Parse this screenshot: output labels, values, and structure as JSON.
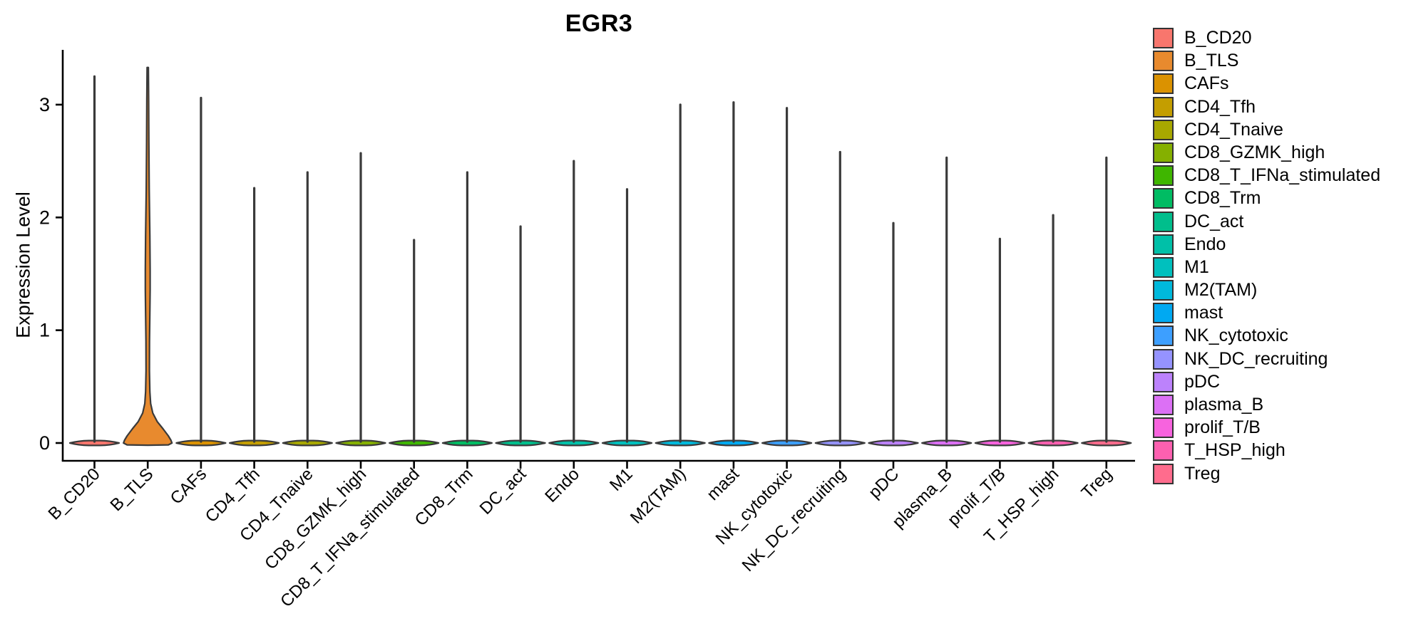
{
  "title": "EGR3",
  "y_axis": {
    "label": "Expression Level",
    "tick_labels": [
      "0",
      "1",
      "2",
      "3"
    ]
  },
  "style": {
    "background": "#FFFFFF",
    "axis_color": "#000000",
    "violin_outline_color": "#3A3A3A",
    "text_color": "#000000"
  },
  "chart_data": {
    "type": "violin",
    "title": "EGR3",
    "xlabel": "",
    "ylabel": "Expression Level",
    "ylim": [
      0,
      3.5
    ],
    "y_ticks": [
      0,
      1,
      2,
      3
    ],
    "grid": false,
    "legend_position": "right",
    "x_tick_angle": 45,
    "categories": [
      "B_CD20",
      "B_TLS",
      "CAFs",
      "CD4_Tfh",
      "CD4_Tnaive",
      "CD8_GZMK_high",
      "CD8_T_IFNa_stimulated",
      "CD8_Trm",
      "DC_act",
      "Endo",
      "M1",
      "M2(TAM)",
      "mast",
      "NK_cytotoxic",
      "NK_DC_recruiting",
      "pDC",
      "plasma_B",
      "prolif_T/B",
      "T_HSP_high",
      "Treg"
    ],
    "series": [
      {
        "name": "B_CD20",
        "color": "#F8766D",
        "max_expression": 3.25,
        "body": "spike"
      },
      {
        "name": "B_TLS",
        "color": "#E88A2E",
        "max_expression": 3.33,
        "body": "bell",
        "density_profile": [
          [
            0.0,
            1.0
          ],
          [
            0.025,
            0.955
          ],
          [
            0.063,
            0.85
          ],
          [
            0.126,
            0.63
          ],
          [
            0.19,
            0.39
          ],
          [
            0.265,
            0.21
          ],
          [
            0.35,
            0.12
          ],
          [
            0.455,
            0.087
          ],
          [
            0.64,
            0.072
          ],
          [
            0.9,
            0.075
          ],
          [
            1.15,
            0.087
          ],
          [
            1.36,
            0.101
          ],
          [
            1.53,
            0.099
          ],
          [
            1.84,
            0.087
          ],
          [
            2.25,
            0.063
          ],
          [
            2.67,
            0.048
          ],
          [
            3.04,
            0.039
          ],
          [
            3.33,
            0.027
          ]
        ]
      },
      {
        "name": "CAFs",
        "color": "#DB9200",
        "max_expression": 3.06,
        "body": "spike"
      },
      {
        "name": "CD4_Tfh",
        "color": "#C49E00",
        "max_expression": 2.26,
        "body": "spike"
      },
      {
        "name": "CD4_Tnaive",
        "color": "#A8A800",
        "max_expression": 2.4,
        "body": "spike"
      },
      {
        "name": "CD8_GZMK_high",
        "color": "#85B000",
        "max_expression": 2.57,
        "body": "spike"
      },
      {
        "name": "CD8_T_IFNa_stimulated",
        "color": "#3FB600",
        "max_expression": 1.8,
        "body": "spike"
      },
      {
        "name": "CD8_Trm",
        "color": "#00BC63",
        "max_expression": 2.4,
        "body": "spike"
      },
      {
        "name": "DC_act",
        "color": "#00BE8C",
        "max_expression": 1.92,
        "body": "spike"
      },
      {
        "name": "Endo",
        "color": "#00C0A8",
        "max_expression": 2.5,
        "body": "spike"
      },
      {
        "name": "M1",
        "color": "#00C0BE",
        "max_expression": 2.25,
        "body": "spike"
      },
      {
        "name": "M2(TAM)",
        "color": "#00B9DC",
        "max_expression": 3.0,
        "body": "spike"
      },
      {
        "name": "mast",
        "color": "#00A9F2",
        "max_expression": 3.02,
        "body": "spike"
      },
      {
        "name": "NK_cytotoxic",
        "color": "#3D9FFF",
        "max_expression": 2.97,
        "body": "spike"
      },
      {
        "name": "NK_DC_recruiting",
        "color": "#9593FF",
        "max_expression": 2.58,
        "body": "spike"
      },
      {
        "name": "pDC",
        "color": "#BC82FC",
        "max_expression": 1.95,
        "body": "spike"
      },
      {
        "name": "plasma_B",
        "color": "#DC70F5",
        "max_expression": 2.53,
        "body": "spike"
      },
      {
        "name": "prolif_T/B",
        "color": "#F763DE",
        "max_expression": 1.81,
        "body": "spike"
      },
      {
        "name": "T_HSP_high",
        "color": "#FD60B0",
        "max_expression": 2.02,
        "body": "spike"
      },
      {
        "name": "Treg",
        "color": "#FF6C8D",
        "max_expression": 2.53,
        "body": "spike"
      }
    ]
  }
}
